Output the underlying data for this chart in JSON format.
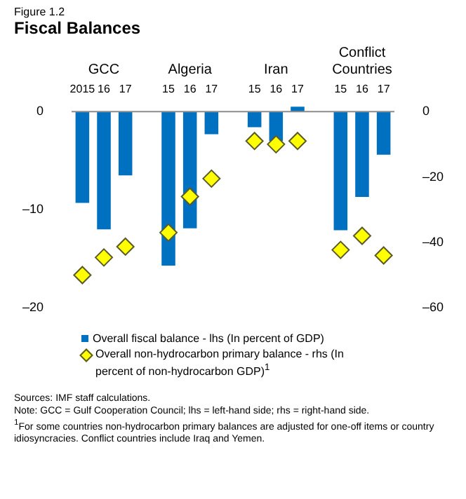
{
  "chart_data": {
    "type": "bar",
    "title": "Fiscal Balances",
    "subtitle": "Figure 1.2",
    "categories": [
      "2015",
      "16",
      "17",
      null,
      "15",
      "16",
      "17",
      null,
      "15",
      "16",
      "17",
      null,
      "15",
      "16",
      "17"
    ],
    "series": [
      {
        "name": "Overall fiscal balance - lhs (In percent of GDP)",
        "color": "#0070c0",
        "values": [
          -9.3,
          -12.0,
          -6.5,
          null,
          -15.7,
          -11.9,
          -2.3,
          null,
          -1.6,
          -3.0,
          0.5,
          null,
          -12.1,
          -8.7,
          -4.4
        ]
      },
      {
        "name": "Overall non-hydrocarbon primary balance - rhs (In percent of non-hydrocarbon GDP)$^{1}$",
        "type": "scatter",
        "axis": "y2",
        "marker": "diamond",
        "color": "#ffff00",
        "values": [
          -50,
          -44.6,
          -41.3,
          null,
          -37,
          -26,
          -20.5,
          null,
          -9,
          -10,
          -9,
          null,
          -42.3,
          -38,
          -44
        ]
      }
    ],
    "ylim": [
      -20,
      1
    ],
    "yticks": [
      0,
      {
        "value": -10,
        "label": "–10"
      },
      {
        "value": -20,
        "label": "–20"
      }
    ],
    "y2lim": [
      -60,
      3
    ],
    "y2ticks": [
      0,
      {
        "value": -20,
        "label": "–20"
      },
      {
        "value": -40,
        "label": "–40"
      },
      {
        "value": -60,
        "label": "–60"
      }
    ],
    "grid": false,
    "legend": "bottom",
    "annotations": [
      "GCC",
      "Algeria",
      "Iran",
      "Conflict Countries",
      "Sources: IMF staff calculations.",
      "Note: GCC = Gulf Cooperation Council; lhs = left-hand side; rhs = right-hand side.",
      "$^{1}$For some countries non-hydrocarbon primary balances are adjusted for one-off items or country idiosyncracies. Conflict countries include Iraq and Yemen."
    ]
  }
}
